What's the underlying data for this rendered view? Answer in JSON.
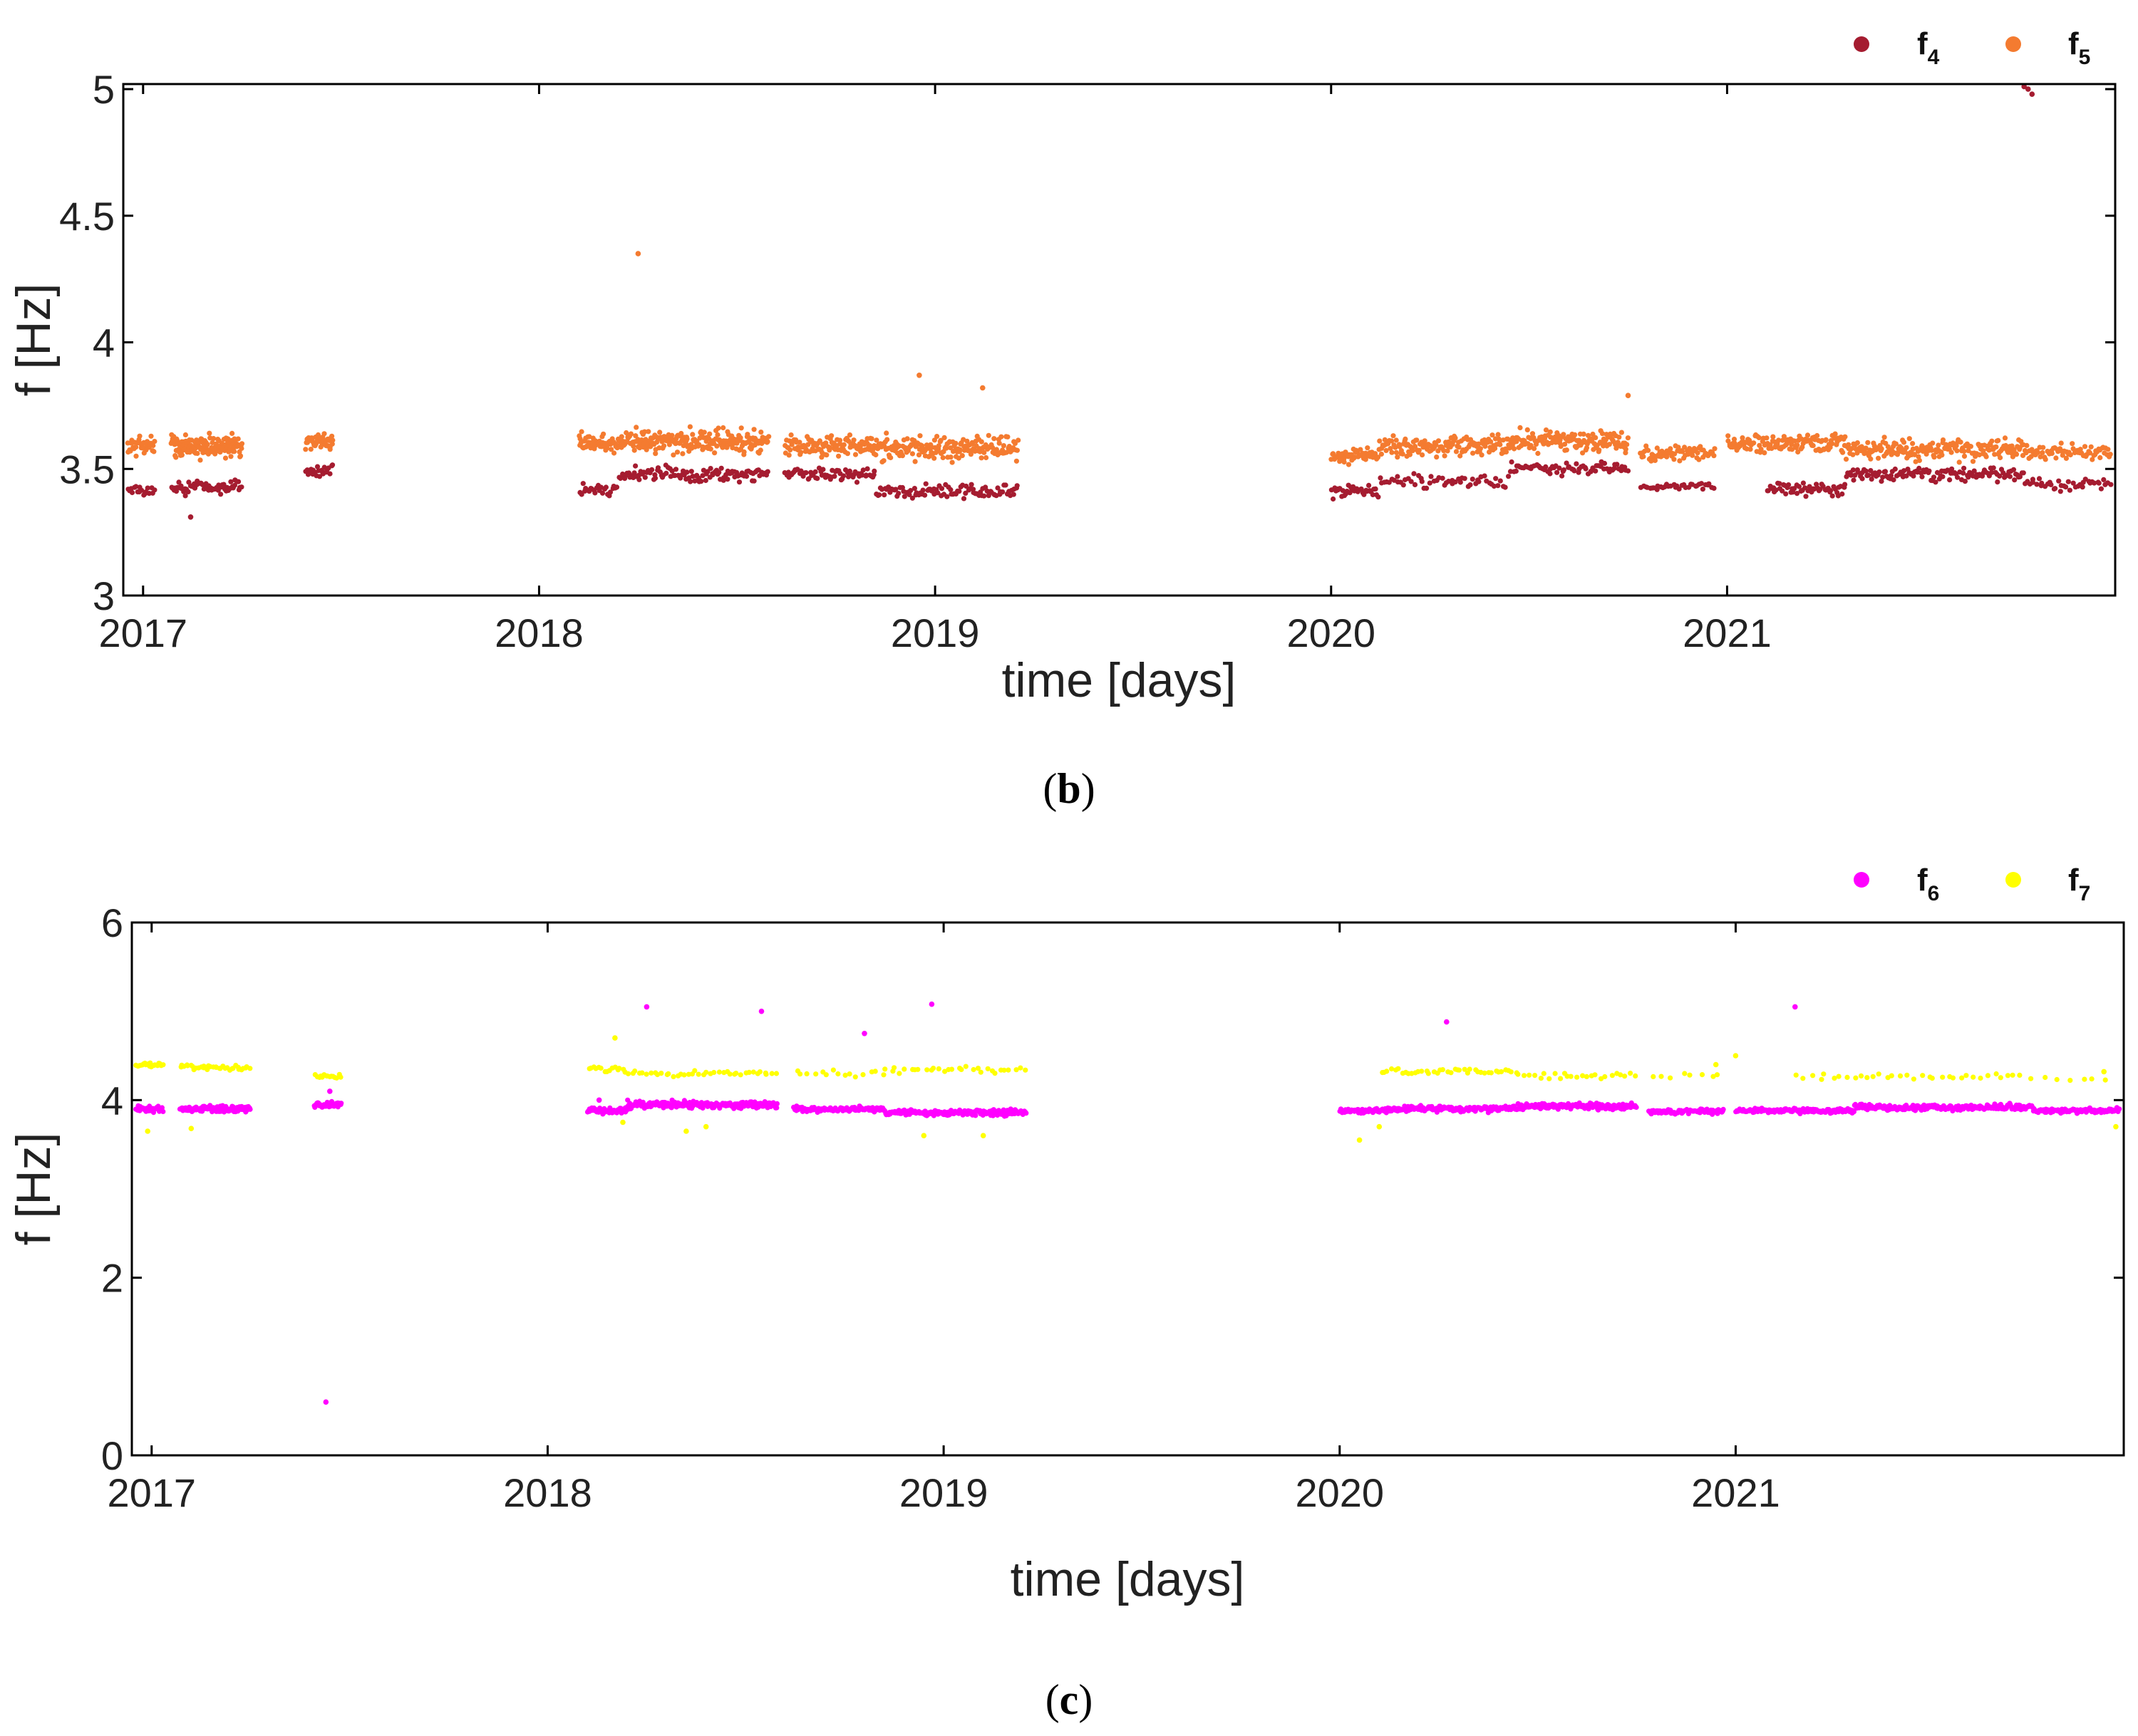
{
  "chart_data": [
    {
      "type": "scatter",
      "panel_label": "b",
      "title": "",
      "xlabel": "time [days]",
      "ylabel": "f [Hz]",
      "xlim": [
        2016.95,
        2021.98
      ],
      "ylim": [
        3.0,
        5.02
      ],
      "xticks": [
        2017,
        2018,
        2019,
        2020,
        2021
      ],
      "xtick_labels": [
        "2017",
        "2018",
        "2019",
        "2020",
        "2021"
      ],
      "yticks": [
        3.0,
        3.5,
        4.0,
        4.5,
        5.0
      ],
      "ytick_labels": [
        "3",
        "3.5",
        "4",
        "4.5",
        "5"
      ],
      "legend": {
        "position": "top-right",
        "entries": [
          {
            "label": "f",
            "subscript": "4"
          },
          {
            "label": "f",
            "subscript": "5"
          }
        ]
      },
      "series": [
        {
          "name": "f4",
          "color": "#a51c30",
          "segments": [
            {
              "start": 2016.96,
              "end": 2017.03,
              "level": 3.41,
              "spread": 0.03,
              "n": 18
            },
            {
              "start": 2017.07,
              "end": 2017.25,
              "level": 3.43,
              "spread": 0.04,
              "n": 60
            },
            {
              "start": 2017.41,
              "end": 2017.48,
              "level": 3.49,
              "spread": 0.03,
              "n": 22
            },
            {
              "start": 2018.1,
              "end": 2018.2,
              "level": 3.42,
              "spread": 0.03,
              "n": 25
            },
            {
              "start": 2018.2,
              "end": 2018.58,
              "level": 3.48,
              "spread": 0.04,
              "n": 110
            },
            {
              "start": 2018.62,
              "end": 2018.85,
              "level": 3.48,
              "spread": 0.04,
              "n": 65
            },
            {
              "start": 2018.85,
              "end": 2019.21,
              "level": 3.41,
              "spread": 0.04,
              "n": 95
            },
            {
              "start": 2020.0,
              "end": 2020.12,
              "level": 3.41,
              "spread": 0.03,
              "n": 35
            },
            {
              "start": 2020.12,
              "end": 2020.45,
              "level": 3.45,
              "spread": 0.04,
              "n": 55
            },
            {
              "start": 2020.45,
              "end": 2020.75,
              "level": 3.5,
              "spread": 0.04,
              "n": 70
            },
            {
              "start": 2020.78,
              "end": 2020.97,
              "level": 3.43,
              "spread": 0.02,
              "n": 35
            },
            {
              "start": 2021.1,
              "end": 2021.3,
              "level": 3.42,
              "spread": 0.04,
              "n": 55
            },
            {
              "start": 2021.3,
              "end": 2021.75,
              "level": 3.48,
              "spread": 0.04,
              "n": 120
            },
            {
              "start": 2021.75,
              "end": 2021.97,
              "level": 3.44,
              "spread": 0.03,
              "n": 40
            }
          ],
          "outliers": [
            [
              2017.12,
              3.31
            ],
            [
              2021.75,
              5.01
            ],
            [
              2021.77,
              4.98
            ],
            [
              2021.76,
              5.0
            ]
          ]
        },
        {
          "name": "f5",
          "color": "#f47b30",
          "segments": [
            {
              "start": 2016.96,
              "end": 2017.03,
              "level": 3.59,
              "spread": 0.06,
              "n": 35
            },
            {
              "start": 2017.07,
              "end": 2017.25,
              "level": 3.59,
              "spread": 0.06,
              "n": 140
            },
            {
              "start": 2017.41,
              "end": 2017.48,
              "level": 3.61,
              "spread": 0.05,
              "n": 45
            },
            {
              "start": 2018.1,
              "end": 2018.2,
              "level": 3.6,
              "spread": 0.06,
              "n": 55
            },
            {
              "start": 2018.2,
              "end": 2018.58,
              "level": 3.61,
              "spread": 0.07,
              "n": 230
            },
            {
              "start": 2018.62,
              "end": 2018.85,
              "level": 3.59,
              "spread": 0.06,
              "n": 120
            },
            {
              "start": 2018.85,
              "end": 2019.21,
              "level": 3.58,
              "spread": 0.07,
              "n": 190
            },
            {
              "start": 2020.0,
              "end": 2020.12,
              "level": 3.55,
              "spread": 0.05,
              "n": 55
            },
            {
              "start": 2020.12,
              "end": 2020.45,
              "level": 3.59,
              "spread": 0.06,
              "n": 140
            },
            {
              "start": 2020.45,
              "end": 2020.75,
              "level": 3.61,
              "spread": 0.06,
              "n": 150
            },
            {
              "start": 2020.78,
              "end": 2020.97,
              "level": 3.56,
              "spread": 0.04,
              "n": 70
            },
            {
              "start": 2021.0,
              "end": 2021.3,
              "level": 3.6,
              "spread": 0.05,
              "n": 130
            },
            {
              "start": 2021.3,
              "end": 2021.75,
              "level": 3.58,
              "spread": 0.06,
              "n": 200
            },
            {
              "start": 2021.75,
              "end": 2021.97,
              "level": 3.57,
              "spread": 0.04,
              "n": 70
            }
          ],
          "outliers": [
            [
              2018.25,
              4.35
            ],
            [
              2018.96,
              3.87
            ],
            [
              2019.12,
              3.82
            ],
            [
              2020.75,
              3.79
            ]
          ]
        }
      ]
    },
    {
      "type": "scatter",
      "panel_label": "c",
      "title": "",
      "xlabel": "time [days]",
      "ylabel": "f [Hz]",
      "xlim": [
        2016.95,
        2021.98
      ],
      "ylim": [
        0,
        6
      ],
      "xticks": [
        2017,
        2018,
        2019,
        2020,
        2021
      ],
      "xtick_labels": [
        "2017",
        "2018",
        "2019",
        "2020",
        "2021"
      ],
      "yticks": [
        0,
        2,
        4,
        6
      ],
      "ytick_labels": [
        "0",
        "2",
        "4",
        "6"
      ],
      "legend": {
        "position": "top-right",
        "entries": [
          {
            "label": "f",
            "subscript": "6"
          },
          {
            "label": "f",
            "subscript": "7"
          }
        ]
      },
      "series": [
        {
          "name": "f6",
          "color": "#ff00ff",
          "segments": [
            {
              "start": 2016.96,
              "end": 2017.03,
              "level": 3.9,
              "spread": 0.05,
              "n": 35
            },
            {
              "start": 2017.07,
              "end": 2017.25,
              "level": 3.9,
              "spread": 0.05,
              "n": 110
            },
            {
              "start": 2017.41,
              "end": 2017.48,
              "level": 3.95,
              "spread": 0.05,
              "n": 45
            },
            {
              "start": 2018.1,
              "end": 2018.2,
              "level": 3.88,
              "spread": 0.05,
              "n": 55
            },
            {
              "start": 2018.2,
              "end": 2018.58,
              "level": 3.95,
              "spread": 0.06,
              "n": 220
            },
            {
              "start": 2018.62,
              "end": 2018.85,
              "level": 3.9,
              "spread": 0.04,
              "n": 110
            },
            {
              "start": 2018.85,
              "end": 2019.21,
              "level": 3.86,
              "spread": 0.05,
              "n": 180
            },
            {
              "start": 2020.0,
              "end": 2020.12,
              "level": 3.88,
              "spread": 0.04,
              "n": 55
            },
            {
              "start": 2020.12,
              "end": 2020.45,
              "level": 3.9,
              "spread": 0.05,
              "n": 150
            },
            {
              "start": 2020.45,
              "end": 2020.75,
              "level": 3.93,
              "spread": 0.05,
              "n": 150
            },
            {
              "start": 2020.78,
              "end": 2020.97,
              "level": 3.87,
              "spread": 0.04,
              "n": 80
            },
            {
              "start": 2021.0,
              "end": 2021.3,
              "level": 3.88,
              "spread": 0.04,
              "n": 130
            },
            {
              "start": 2021.3,
              "end": 2021.75,
              "level": 3.92,
              "spread": 0.05,
              "n": 230
            },
            {
              "start": 2021.75,
              "end": 2021.97,
              "level": 3.88,
              "spread": 0.04,
              "n": 90
            }
          ],
          "outliers": [
            [
              2017.44,
              0.6
            ],
            [
              2018.25,
              5.05
            ],
            [
              2018.54,
              5.0
            ],
            [
              2018.8,
              4.75
            ],
            [
              2018.97,
              5.08
            ],
            [
              2020.27,
              4.88
            ],
            [
              2021.15,
              5.05
            ],
            [
              2018.13,
              4.0
            ],
            [
              2017.45,
              4.1
            ]
          ]
        },
        {
          "name": "f7",
          "color": "#ffff00",
          "segments": [
            {
              "start": 2016.96,
              "end": 2017.03,
              "level": 4.4,
              "spread": 0.04,
              "n": 20
            },
            {
              "start": 2017.07,
              "end": 2017.25,
              "level": 4.37,
              "spread": 0.05,
              "n": 35
            },
            {
              "start": 2017.41,
              "end": 2017.48,
              "level": 4.27,
              "spread": 0.03,
              "n": 15
            },
            {
              "start": 2018.1,
              "end": 2018.2,
              "level": 4.35,
              "spread": 0.06,
              "n": 15
            },
            {
              "start": 2018.2,
              "end": 2018.58,
              "level": 4.3,
              "spread": 0.05,
              "n": 40
            },
            {
              "start": 2018.62,
              "end": 2018.85,
              "level": 4.3,
              "spread": 0.05,
              "n": 15
            },
            {
              "start": 2018.85,
              "end": 2019.21,
              "level": 4.34,
              "spread": 0.05,
              "n": 30
            },
            {
              "start": 2020.1,
              "end": 2020.45,
              "level": 4.32,
              "spread": 0.05,
              "n": 40
            },
            {
              "start": 2020.45,
              "end": 2020.75,
              "level": 4.28,
              "spread": 0.05,
              "n": 25
            },
            {
              "start": 2020.78,
              "end": 2020.97,
              "level": 4.28,
              "spread": 0.05,
              "n": 8
            },
            {
              "start": 2021.15,
              "end": 2021.75,
              "level": 4.27,
              "spread": 0.05,
              "n": 35
            },
            {
              "start": 2021.75,
              "end": 2021.97,
              "level": 4.24,
              "spread": 0.04,
              "n": 6
            }
          ],
          "outliers": [
            [
              2016.99,
              3.65
            ],
            [
              2017.1,
              3.68
            ],
            [
              2018.17,
              4.7
            ],
            [
              2018.19,
              3.75
            ],
            [
              2018.35,
              3.65
            ],
            [
              2018.4,
              3.7
            ],
            [
              2018.95,
              3.6
            ],
            [
              2019.1,
              3.6
            ],
            [
              2020.05,
              3.55
            ],
            [
              2020.1,
              3.7
            ],
            [
              2020.95,
              4.4
            ],
            [
              2021.0,
              4.5
            ],
            [
              2021.93,
              4.32
            ],
            [
              2021.96,
              3.7
            ]
          ]
        }
      ]
    }
  ]
}
